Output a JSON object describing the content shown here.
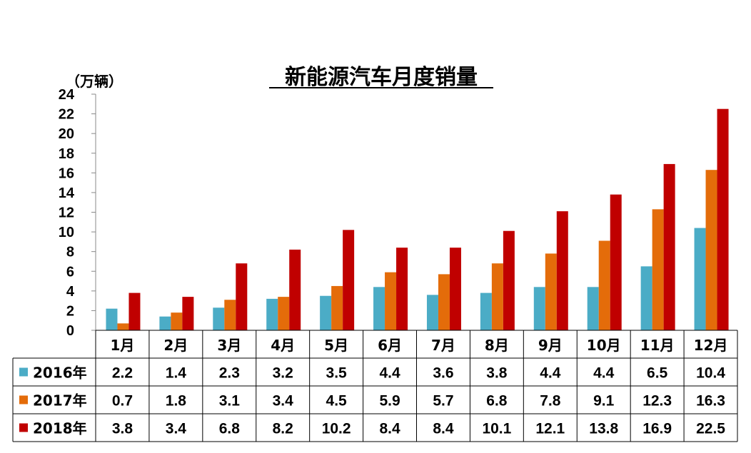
{
  "chart_data": {
    "type": "bar",
    "title": "新能源汽车月度销量",
    "ylabel": "（万辆）",
    "ylim": [
      0,
      24
    ],
    "yticks": [
      0,
      2,
      4,
      6,
      8,
      10,
      12,
      14,
      16,
      18,
      20,
      22,
      24
    ],
    "grid": false,
    "legend": "data-table-left",
    "categories": [
      "1月",
      "2月",
      "3月",
      "4月",
      "5月",
      "6月",
      "7月",
      "8月",
      "9月",
      "10月",
      "11月",
      "12月"
    ],
    "series": [
      {
        "name": "2016年",
        "color": "#4bacc6",
        "values": [
          2.2,
          1.4,
          2.3,
          3.2,
          3.5,
          4.4,
          3.6,
          3.8,
          4.4,
          4.4,
          6.5,
          10.4
        ],
        "labels": [
          "2.2",
          "1.4",
          "2.3",
          "3.2",
          "3.5",
          "4.4",
          "3.6",
          "3.8",
          "4.4",
          "4.4",
          "6.5",
          "10.4"
        ]
      },
      {
        "name": "2017年",
        "color": "#e46c0a",
        "values": [
          0.7,
          1.8,
          3.1,
          3.4,
          4.5,
          5.9,
          5.7,
          6.8,
          7.8,
          9.1,
          12.3,
          16.3
        ],
        "labels": [
          "0.7",
          "1.8",
          "3.1",
          "3.4",
          "4.5",
          "5.9",
          "5.7",
          "6.8",
          "7.8",
          "9.1",
          "12.3",
          "16.3"
        ]
      },
      {
        "name": "2018年",
        "color": "#c00000",
        "values": [
          3.8,
          3.4,
          6.8,
          8.2,
          10.2,
          8.4,
          8.4,
          10.1,
          12.1,
          13.8,
          16.9,
          22.5
        ],
        "labels": [
          "3.8",
          "3.4",
          "6.8",
          "8.2",
          "10.2",
          "8.4",
          "8.4",
          "10.1",
          "12.1",
          "13.8",
          "16.9",
          "22.5"
        ]
      }
    ]
  }
}
